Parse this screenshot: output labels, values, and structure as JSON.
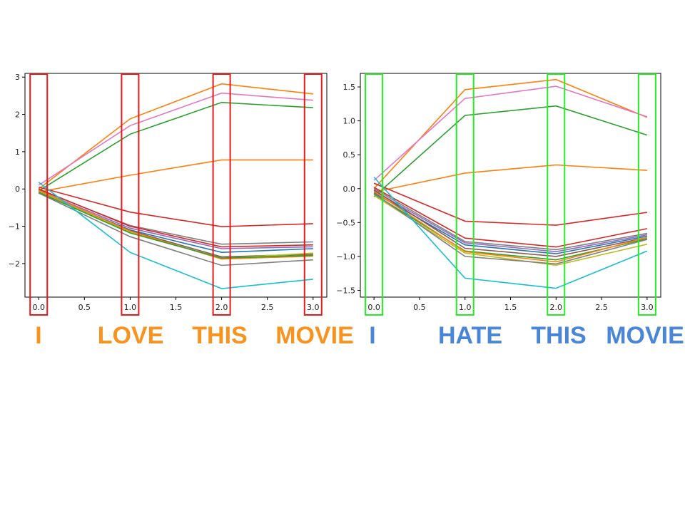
{
  "colors": {
    "left_highlight": "#e8191a",
    "right_highlight": "#22ee22",
    "left_words": "#f7931e",
    "right_words": "#4a86d8"
  },
  "panels": {
    "left": {
      "words": [
        "I",
        "LOVE",
        "THIS",
        "MOVIE"
      ]
    },
    "right": {
      "words": [
        "I",
        "HATE",
        "THIS",
        "MOVIE"
      ]
    }
  },
  "chart_data": [
    {
      "type": "line",
      "panel": "left",
      "x": [
        0.0,
        1.0,
        2.0,
        3.0
      ],
      "xlim": [
        -0.15,
        3.15
      ],
      "ylim": [
        -2.9,
        3.1
      ],
      "xticks": [
        "0.0",
        "0.5",
        "1.0",
        "1.5",
        "2.0",
        "2.5",
        "3.0"
      ],
      "yticks": [
        "3",
        "2",
        "1",
        "0",
        "−1",
        "−2"
      ],
      "highlighted_x": [
        0.0,
        1.0,
        2.0,
        3.0
      ],
      "series": [
        {
          "color": "#ff7f0e",
          "values": [
            0.0,
            1.88,
            2.82,
            2.55
          ]
        },
        {
          "color": "#e377c2",
          "values": [
            0.1,
            1.7,
            2.57,
            2.38
          ]
        },
        {
          "color": "#2ca02c",
          "values": [
            -0.05,
            1.47,
            2.32,
            2.18
          ]
        },
        {
          "color": "#ff7f0e",
          "values": [
            -0.08,
            0.37,
            0.78,
            0.78
          ]
        },
        {
          "color": "#d62728",
          "values": [
            0.05,
            -0.62,
            -1.01,
            -0.93
          ]
        },
        {
          "color": "#7f7f7f",
          "values": [
            -0.02,
            -0.98,
            -1.48,
            -1.42
          ]
        },
        {
          "color": "#d62728",
          "values": [
            0.0,
            -1.0,
            -1.55,
            -1.5
          ]
        },
        {
          "color": "#9467bd",
          "values": [
            -0.05,
            -1.05,
            -1.6,
            -1.55
          ]
        },
        {
          "color": "#1f77b4",
          "values": [
            -0.08,
            -1.1,
            -1.7,
            -1.6
          ]
        },
        {
          "color": "#8c564b",
          "values": [
            -0.1,
            -1.12,
            -1.82,
            -1.75
          ]
        },
        {
          "color": "#bcbd22",
          "values": [
            -0.06,
            -1.15,
            -1.86,
            -1.72
          ]
        },
        {
          "color": "#ff7f0e",
          "values": [
            -0.04,
            -1.13,
            -1.88,
            -1.8
          ]
        },
        {
          "color": "#2ca02c",
          "values": [
            -0.09,
            -1.18,
            -1.85,
            -1.78
          ]
        },
        {
          "color": "#7f7f7f",
          "values": [
            -0.11,
            -1.28,
            -2.05,
            -1.9
          ]
        },
        {
          "color": "#17becf",
          "values": [
            0.18,
            -1.7,
            -2.67,
            -2.42
          ]
        }
      ]
    },
    {
      "type": "line",
      "panel": "right",
      "x": [
        0.0,
        1.0,
        2.0,
        3.0
      ],
      "xlim": [
        -0.15,
        3.15
      ],
      "ylim": [
        -1.6,
        1.7
      ],
      "xticks": [
        "0.0",
        "0.5",
        "1.0",
        "1.5",
        "2.0",
        "2.5",
        "3.0"
      ],
      "yticks": [
        "1.5",
        "1.0",
        "0.5",
        "0.0",
        "−0.5",
        "−1.0",
        "−1.5"
      ],
      "highlighted_x": [
        0.0,
        1.0,
        2.0,
        3.0
      ],
      "series": [
        {
          "color": "#ff7f0e",
          "values": [
            0.0,
            1.46,
            1.61,
            1.05
          ]
        },
        {
          "color": "#e377c2",
          "values": [
            0.12,
            1.33,
            1.51,
            1.06
          ]
        },
        {
          "color": "#2ca02c",
          "values": [
            -0.12,
            1.08,
            1.22,
            0.79
          ]
        },
        {
          "color": "#ff7f0e",
          "values": [
            -0.05,
            0.23,
            0.35,
            0.27
          ]
        },
        {
          "color": "#d62728",
          "values": [
            0.08,
            -0.48,
            -0.54,
            -0.35
          ]
        },
        {
          "color": "#d62728",
          "values": [
            0.02,
            -0.73,
            -0.86,
            -0.59
          ]
        },
        {
          "color": "#7f7f7f",
          "values": [
            0.0,
            -0.78,
            -0.9,
            -0.66
          ]
        },
        {
          "color": "#9467bd",
          "values": [
            -0.03,
            -0.8,
            -0.93,
            -0.68
          ]
        },
        {
          "color": "#1f77b4",
          "values": [
            -0.06,
            -0.83,
            -0.96,
            -0.7
          ]
        },
        {
          "color": "#8c564b",
          "values": [
            -0.02,
            -0.88,
            -1.0,
            -0.72
          ]
        },
        {
          "color": "#2ca02c",
          "values": [
            -0.08,
            -0.92,
            -1.05,
            -0.74
          ]
        },
        {
          "color": "#ff7f0e",
          "values": [
            -0.04,
            -0.93,
            -1.08,
            -0.72
          ]
        },
        {
          "color": "#bcbd22",
          "values": [
            -0.1,
            -0.95,
            -1.13,
            -0.82
          ]
        },
        {
          "color": "#7f7f7f",
          "values": [
            -0.07,
            -1.0,
            -1.11,
            -0.75
          ]
        },
        {
          "color": "#17becf",
          "values": [
            0.17,
            -1.32,
            -1.47,
            -0.92
          ]
        }
      ]
    }
  ]
}
